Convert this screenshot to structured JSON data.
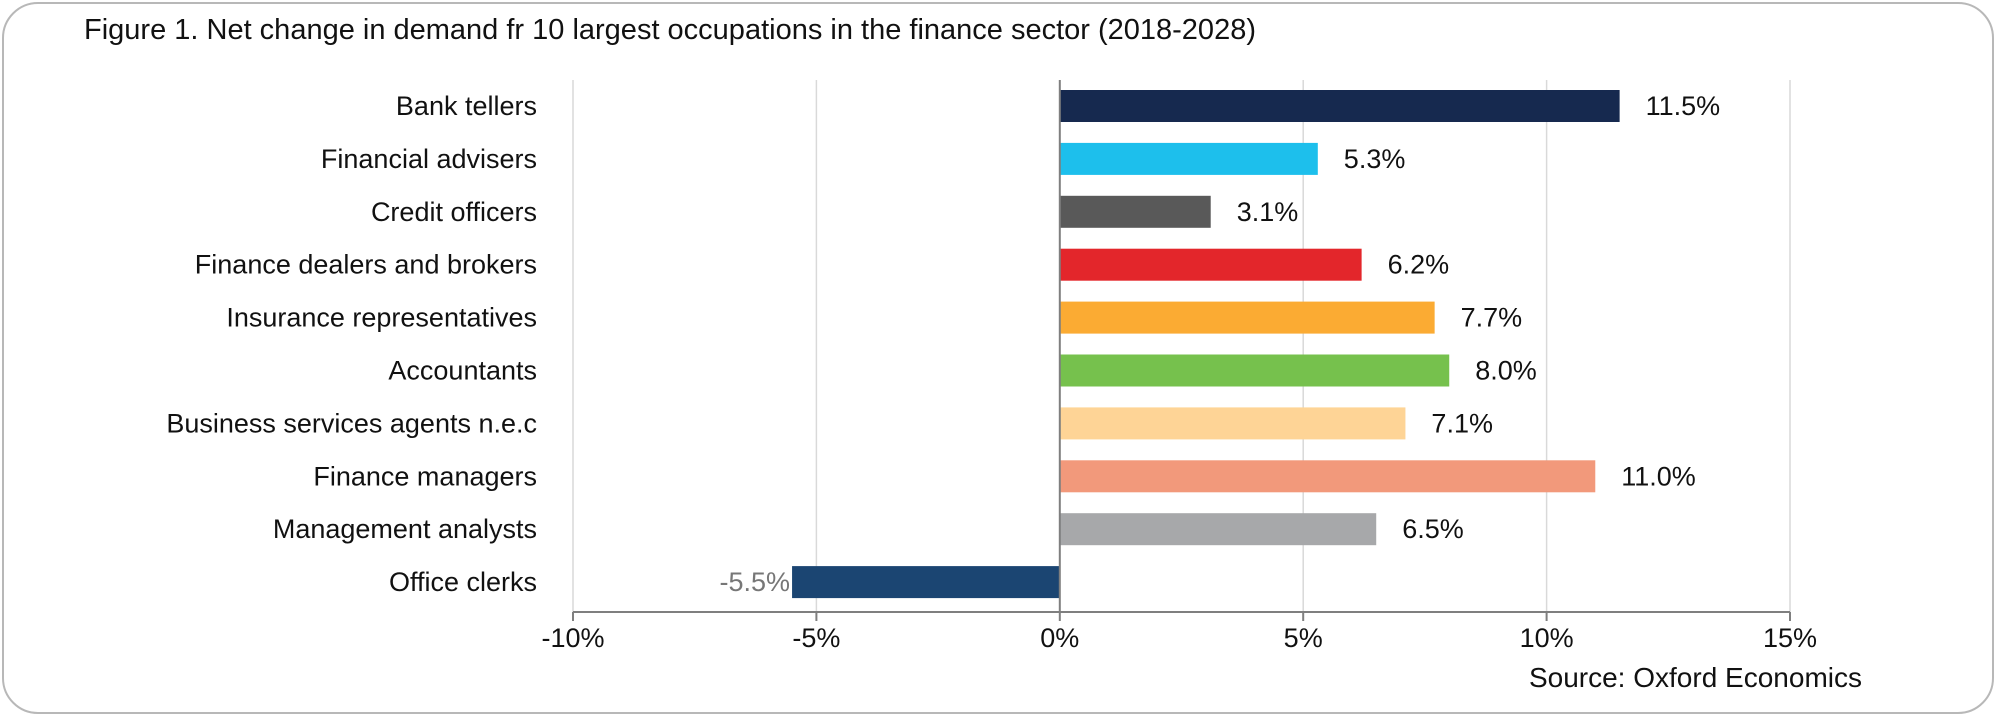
{
  "page": {
    "source": "Source: Oxford Economics"
  },
  "chart_data": {
    "type": "bar",
    "orientation": "horizontal",
    "title": "Figure 1. Net change in demand fr 10 largest occupations in the finance sector (2018-2028)",
    "xlabel": "",
    "ylabel": "",
    "xlim": [
      -10,
      15
    ],
    "grid": true,
    "legend": "none",
    "x_ticks": [
      -10,
      -5,
      0,
      5,
      10,
      15
    ],
    "x_tick_labels": [
      "-10%",
      "-5%",
      "0%",
      "5%",
      "10%",
      "15%"
    ],
    "categories": [
      "Bank tellers",
      "Financial advisers",
      "Credit officers",
      "Finance dealers and brokers",
      "Insurance representatives",
      "Accountants",
      "Business services agents n.e.c",
      "Finance managers",
      "Management analysts",
      "Office clerks"
    ],
    "values": [
      11.5,
      5.3,
      3.1,
      6.2,
      7.7,
      8.0,
      7.1,
      11.0,
      6.5,
      -5.5
    ],
    "data_labels": [
      "11.5%",
      "5.3%",
      "3.1%",
      "6.2%",
      "7.7%",
      "8.0%",
      "7.1%",
      "11.0%",
      "6.5%",
      "-5.5%"
    ],
    "colors": [
      "#16294f",
      "#1dbfec",
      "#595959",
      "#e3262b",
      "#fbab33",
      "#76c14d",
      "#fed496",
      "#f2997b",
      "#a7a8aa",
      "#1b4572"
    ]
  }
}
